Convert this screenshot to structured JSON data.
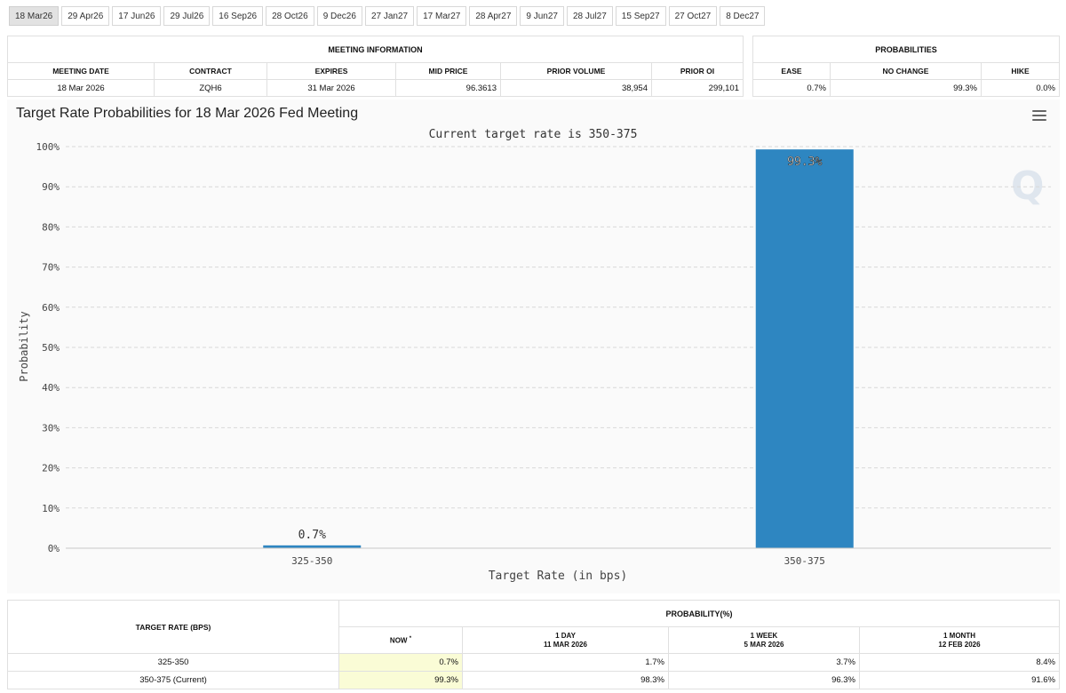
{
  "tabs": [
    "18 Mar26",
    "29 Apr26",
    "17 Jun26",
    "29 Jul26",
    "16 Sep26",
    "28 Oct26",
    "9 Dec26",
    "27 Jan27",
    "17 Mar27",
    "28 Apr27",
    "9 Jun27",
    "28 Jul27",
    "15 Sep27",
    "27 Oct27",
    "8 Dec27"
  ],
  "active_tab": 0,
  "meeting_info": {
    "section": "MEETING INFORMATION",
    "headers": [
      "MEETING DATE",
      "CONTRACT",
      "EXPIRES",
      "MID PRICE",
      "PRIOR VOLUME",
      "PRIOR OI"
    ],
    "row": [
      "18 Mar 2026",
      "ZQH6",
      "31 Mar 2026",
      "96.3613",
      "38,954",
      "299,101"
    ]
  },
  "probabilities": {
    "section": "PROBABILITIES",
    "headers": [
      "EASE",
      "NO CHANGE",
      "HIKE"
    ],
    "row": [
      "0.7%",
      "99.3%",
      "0.0%"
    ]
  },
  "chart_title": "Target Rate Probabilities for 18 Mar 2026 Fed Meeting",
  "watermark": "Q",
  "colors": {
    "bar": "#2e86c1",
    "grid": "#d8d8d8",
    "now_highlight": "#fafcd6"
  },
  "chart_data": {
    "type": "bar",
    "subtitle": "Current target rate is 350-375",
    "categories": [
      "325-350",
      "350-375"
    ],
    "values": [
      0.7,
      99.3
    ],
    "data_labels": [
      "0.7%",
      "99.3%"
    ],
    "xlabel": "Target Rate (in bps)",
    "ylabel": "Probability",
    "ylim": [
      0,
      100
    ],
    "yticks": [
      "0%",
      "10%",
      "20%",
      "30%",
      "40%",
      "50%",
      "60%",
      "70%",
      "80%",
      "90%",
      "100%"
    ],
    "grid": true
  },
  "history": {
    "target_header": "TARGET RATE (BPS)",
    "section": "PROBABILITY(%)",
    "columns": [
      {
        "line1": "NOW",
        "line2": ""
      },
      {
        "line1": "1 DAY",
        "line2": "11 MAR 2026"
      },
      {
        "line1": "1 WEEK",
        "line2": "5 MAR 2026"
      },
      {
        "line1": "1 MONTH",
        "line2": "12 FEB 2026"
      }
    ],
    "now_marker": "*",
    "rows": [
      {
        "rate": "325-350",
        "values": [
          "0.7%",
          "1.7%",
          "3.7%",
          "8.4%"
        ]
      },
      {
        "rate": "350-375 (Current)",
        "values": [
          "99.3%",
          "98.3%",
          "96.3%",
          "91.6%"
        ]
      }
    ]
  }
}
